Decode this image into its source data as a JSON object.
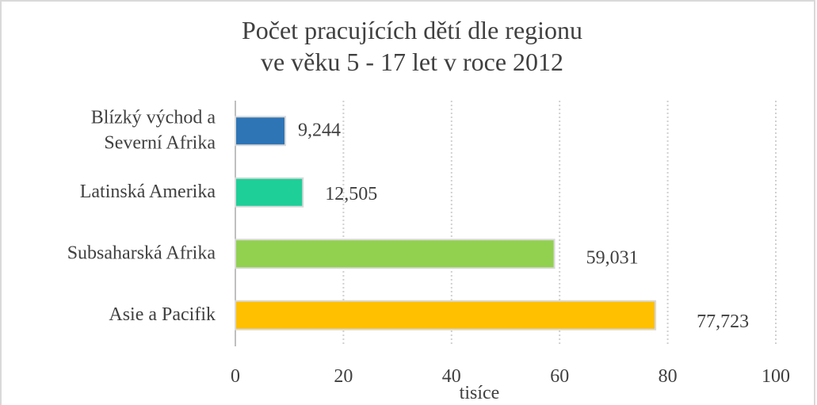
{
  "chart_data": {
    "type": "bar",
    "orientation": "horizontal",
    "title": "Počet pracujících dětí dle regionu\nve věku 5 - 17 let v roce 2012",
    "categories": [
      "Blízký východ a\nSeverní Afrika",
      "Latinská Amerika",
      "Subsaharská Afrika",
      "Asie a Pacifik"
    ],
    "values": [
      9.244,
      12.505,
      59.031,
      77.723
    ],
    "value_labels": [
      "9,244",
      "12,505",
      "59,031",
      "77,723"
    ],
    "colors": [
      "#2e75b6",
      "#1ecf98",
      "#92d050",
      "#ffc000"
    ],
    "xlabel": "tisíce",
    "xlim": [
      0,
      100
    ],
    "xticks": [
      0,
      20,
      40,
      60,
      80,
      100
    ],
    "grid": true
  }
}
